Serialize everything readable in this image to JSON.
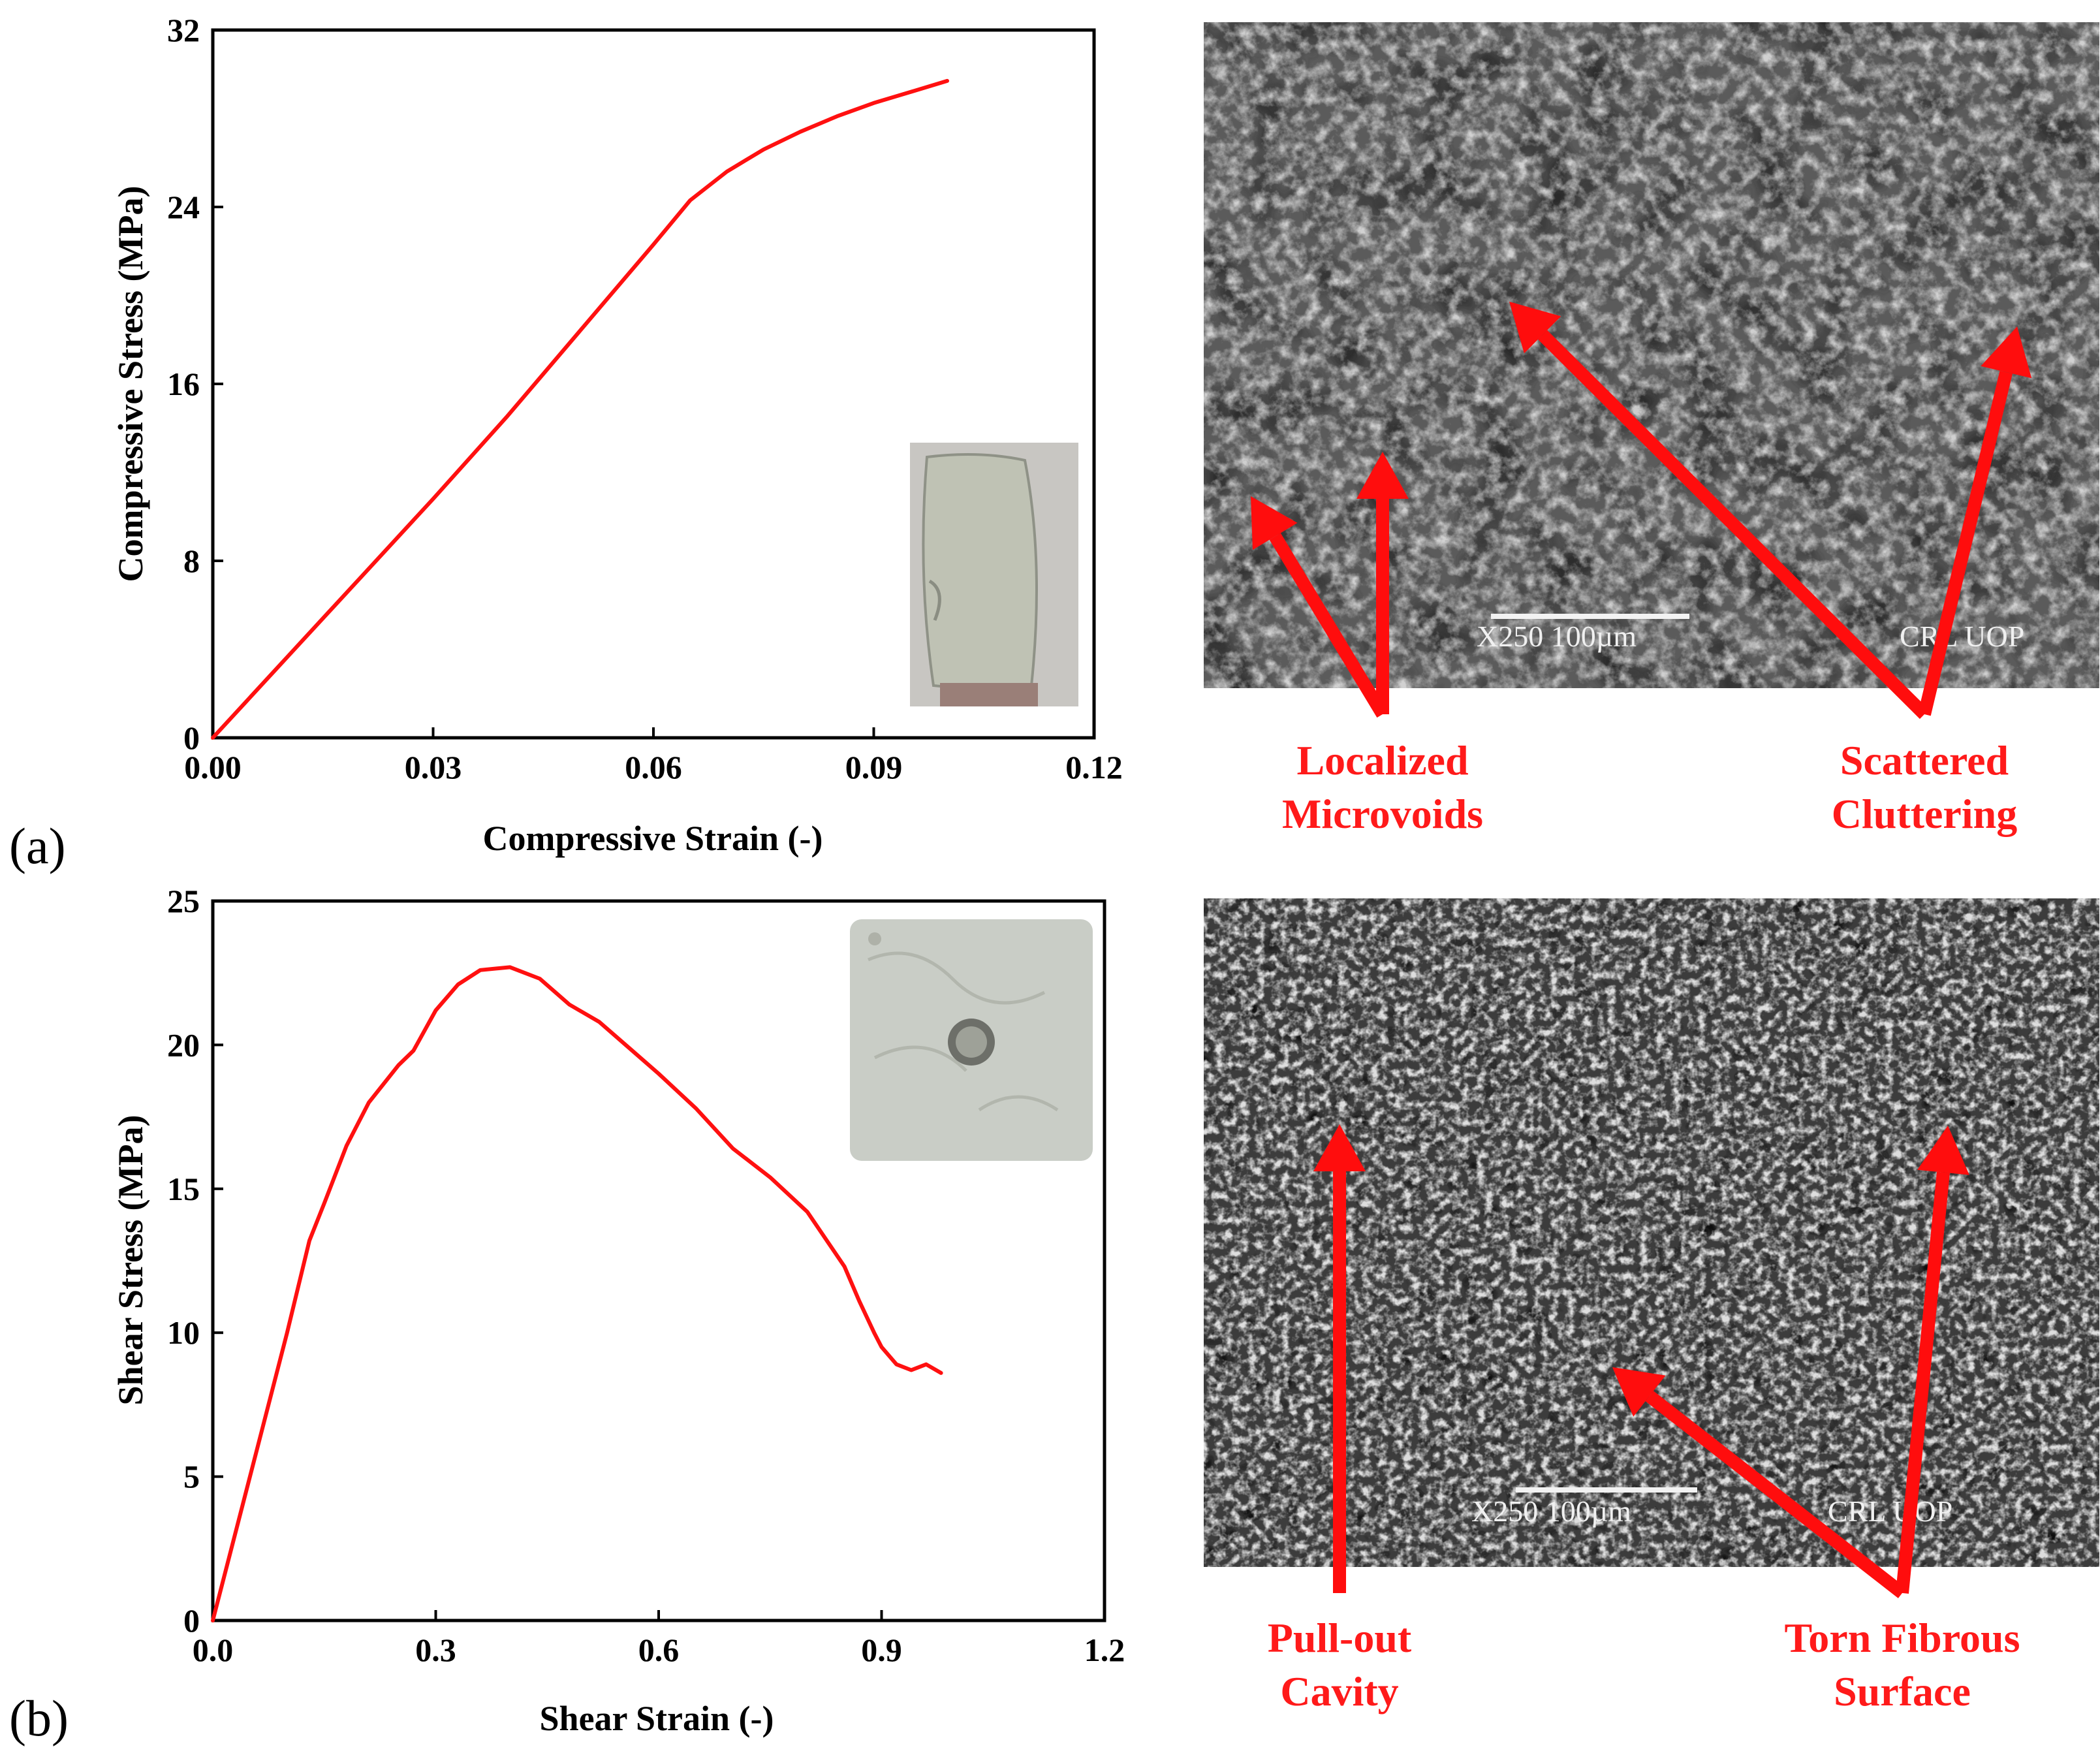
{
  "chart_data": [
    {
      "type": "line",
      "panel_label": "(a)",
      "xlabel": "Compressive Strain (-)",
      "ylabel": "Compressive Stress (MPa)",
      "xlim": [
        0,
        0.12
      ],
      "ylim": [
        0,
        32
      ],
      "xticks": [
        "0.00",
        "0.03",
        "0.06",
        "0.09",
        "0.12"
      ],
      "yticks": [
        "0",
        "8",
        "16",
        "24",
        "32"
      ],
      "grid": false,
      "series": [
        {
          "color": "#ff1010",
          "x": [
            0.0,
            0.01,
            0.02,
            0.03,
            0.04,
            0.05,
            0.06,
            0.065,
            0.07,
            0.075,
            0.08,
            0.085,
            0.09,
            0.095,
            0.1
          ],
          "y": [
            0.0,
            3.6,
            7.2,
            10.8,
            14.5,
            18.4,
            22.3,
            24.3,
            25.6,
            26.6,
            27.4,
            28.1,
            28.7,
            29.2,
            29.7
          ]
        }
      ],
      "inset": "photo of tested compression specimen"
    },
    {
      "type": "line",
      "panel_label": "(b)",
      "xlabel": "Shear Strain (-)",
      "ylabel": "Shear Stress (MPa)",
      "xlim": [
        0,
        1.2
      ],
      "ylim": [
        0,
        25
      ],
      "xticks": [
        "0.0",
        "0.3",
        "0.6",
        "0.9",
        "1.2"
      ],
      "yticks": [
        "0",
        "5",
        "10",
        "15",
        "20",
        "25"
      ],
      "grid": false,
      "series": [
        {
          "color": "#ff1010",
          "x": [
            0.0,
            0.05,
            0.1,
            0.13,
            0.15,
            0.18,
            0.21,
            0.25,
            0.27,
            0.3,
            0.33,
            0.36,
            0.4,
            0.44,
            0.48,
            0.52,
            0.56,
            0.6,
            0.65,
            0.7,
            0.75,
            0.8,
            0.85,
            0.87,
            0.89,
            0.9,
            0.92,
            0.94,
            0.96,
            0.98
          ],
          "y": [
            0.0,
            5.0,
            10.0,
            13.2,
            14.5,
            16.5,
            18.0,
            19.3,
            19.8,
            21.2,
            22.1,
            22.6,
            22.7,
            22.3,
            21.4,
            20.8,
            19.9,
            19.0,
            17.8,
            16.4,
            15.4,
            14.2,
            12.3,
            11.1,
            10.0,
            9.5,
            8.9,
            8.7,
            8.9,
            8.6
          ]
        }
      ],
      "inset": "photo of tested shear specimen"
    }
  ],
  "annotations": {
    "top": [
      "Localized",
      "Microvoids",
      "Scattered",
      "Cluttering"
    ],
    "bottom": [
      "Pull-out",
      "Cavity",
      "Torn Fibrous",
      "Surface"
    ]
  },
  "sem": {
    "top_scale": "X250 100µm",
    "top_lab": "CRL UOP",
    "bottom_scale": "X250 100µm",
    "bottom_lab": "CRL UOP"
  }
}
